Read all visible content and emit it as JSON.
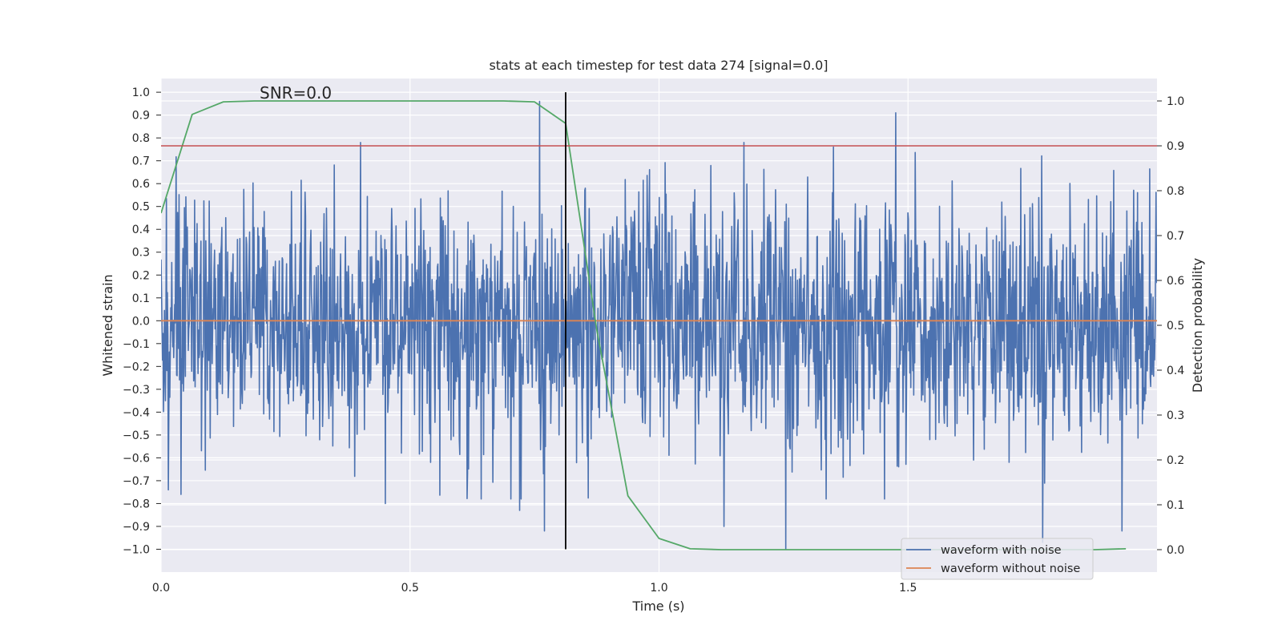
{
  "chart_data": {
    "type": "line",
    "title": "stats at each timestep for test data 274 [signal=0.0]",
    "xlabel": "Time (s)",
    "ylabel_left": "Whitened strain",
    "ylabel_right": "Detection probability",
    "xlim": [
      0.0,
      2.0
    ],
    "ylim_left": [
      -1.1,
      1.06
    ],
    "ylim_right": [
      -0.05,
      1.05
    ],
    "x_ticks": [
      0.0,
      0.5,
      1.0,
      1.5
    ],
    "x_tick_labels": [
      "0.0",
      "0.5",
      "1.0",
      "1.5"
    ],
    "y_left_ticks": [
      1.0,
      0.9,
      0.8,
      0.7,
      0.6,
      0.5,
      0.4,
      0.3,
      0.2,
      0.1,
      0.0,
      -0.1,
      -0.2,
      -0.3,
      -0.4,
      -0.5,
      -0.6,
      -0.7,
      -0.8,
      -0.9,
      -1.0
    ],
    "y_left_tick_labels": [
      "1.0",
      "0.9",
      "0.8",
      "0.7",
      "0.6",
      "0.5",
      "0.4",
      "0.3",
      "0.2",
      "0.1",
      "0.0",
      "−0.1",
      "−0.2",
      "−0.3",
      "−0.4",
      "−0.5",
      "−0.6",
      "−0.7",
      "−0.8",
      "−0.9",
      "−1.0"
    ],
    "y_right_ticks": [
      1.0,
      0.9,
      0.8,
      0.7,
      0.6,
      0.5,
      0.4,
      0.3,
      0.2,
      0.1,
      0.0
    ],
    "y_right_tick_labels": [
      "1.0",
      "0.9",
      "0.8",
      "0.7",
      "0.6",
      "0.5",
      "0.4",
      "0.3",
      "0.2",
      "0.1",
      "0.0"
    ],
    "grid": true,
    "annotation": "SNR=0.0",
    "series": [
      {
        "name": "waveform with noise",
        "color": "#4c72b0",
        "axis": "left",
        "kind": "noise",
        "x_range": [
          0.0,
          2.0
        ],
        "n_samples": 2048,
        "std": 0.27,
        "spikes": [
          {
            "x": 0.76,
            "y": 0.96
          },
          {
            "x": 1.475,
            "y": 0.91
          },
          {
            "x": 0.77,
            "y": -0.92
          },
          {
            "x": 1.255,
            "y": -1.0
          },
          {
            "x": 1.77,
            "y": -0.97
          },
          {
            "x": 1.93,
            "y": -0.92
          },
          {
            "x": 0.72,
            "y": -0.83
          },
          {
            "x": 1.13,
            "y": -0.9
          },
          {
            "x": 0.45,
            "y": -0.8
          },
          {
            "x": 0.04,
            "y": -0.76
          },
          {
            "x": 0.015,
            "y": -0.74
          },
          {
            "x": 1.35,
            "y": 0.76
          }
        ]
      },
      {
        "name": "waveform without noise",
        "color": "#dd8452",
        "axis": "left",
        "x": [
          0.0,
          2.0
        ],
        "y": [
          0.0,
          0.0
        ]
      },
      {
        "name": "detection probability",
        "color": "#55a868",
        "axis": "right",
        "x": [
          0.0,
          0.0625,
          0.125,
          0.1875,
          0.25,
          0.3125,
          0.375,
          0.4375,
          0.5,
          0.5625,
          0.625,
          0.6875,
          0.75,
          0.8125,
          0.875,
          0.9375,
          1.0,
          1.0625,
          1.125,
          1.1875,
          1.25,
          1.3125,
          1.375,
          1.4375,
          1.5,
          1.5625,
          1.625,
          1.6875,
          1.75,
          1.8125,
          1.875,
          1.9375
        ],
        "y": [
          0.75,
          0.97,
          0.998,
          1.0,
          1.0,
          1.0,
          1.0,
          1.0,
          1.0,
          1.0,
          1.0,
          1.0,
          0.998,
          0.95,
          0.49,
          0.12,
          0.025,
          0.002,
          0.0,
          0.0,
          0.0,
          0.0,
          0.0,
          0.0,
          0.0,
          0.0,
          0.0,
          0.0,
          0.0,
          0.0,
          0.0,
          0.002
        ]
      }
    ],
    "threshold": {
      "value": 0.9,
      "axis": "right",
      "color": "#c44e52"
    },
    "vline": {
      "x": 0.8125,
      "y_range": [
        -1.0,
        1.0
      ],
      "color": "#000000"
    },
    "legend": {
      "location": "lower-right",
      "entries": [
        {
          "label": "waveform with noise",
          "color": "#4c72b0"
        },
        {
          "label": "waveform without noise",
          "color": "#dd8452"
        }
      ]
    }
  }
}
